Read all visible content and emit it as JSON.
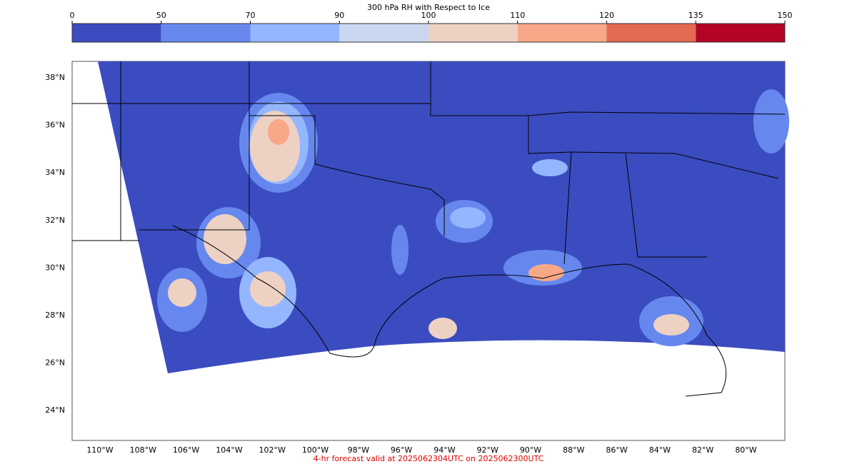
{
  "colorbar": {
    "title": "300 hPa RH with Respect to Ice",
    "levels": [
      0,
      50,
      70,
      90,
      100,
      110,
      120,
      135,
      150
    ],
    "colors": [
      "#3b4cc0",
      "#6688ee",
      "#94b6ff",
      "#c9d7f0",
      "#edd1c2",
      "#f7a889",
      "#e26952",
      "#b40426"
    ]
  },
  "map": {
    "lat_labels": [
      "38°N",
      "36°N",
      "34°N",
      "32°N",
      "30°N",
      "28°N",
      "26°N",
      "24°N"
    ],
    "lon_labels": [
      "110°W",
      "108°W",
      "106°W",
      "104°W",
      "102°W",
      "100°W",
      "98°W",
      "96°W",
      "94°W",
      "92°W",
      "90°W",
      "88°W",
      "86°W",
      "84°W",
      "82°W",
      "80°W"
    ]
  },
  "footer": "4-hr forecast valid at 2025062304UTC on 2025062300UTC"
}
